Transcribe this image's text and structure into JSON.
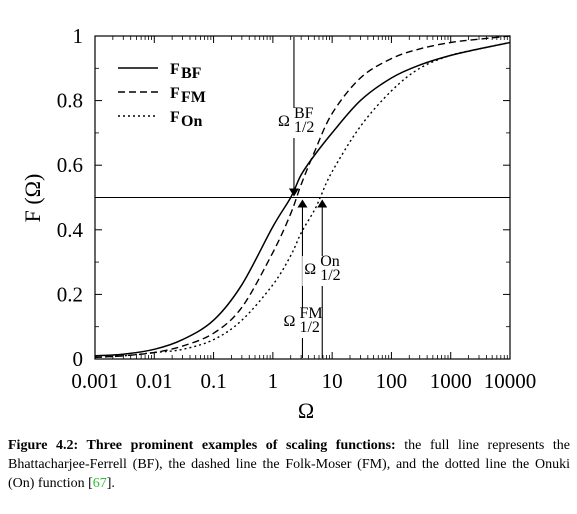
{
  "chart_data": {
    "type": "line",
    "xlabel": "Ω",
    "ylabel": "F (Ω)",
    "xscale": "log",
    "xlim": [
      0.001,
      10000
    ],
    "ylim": [
      0,
      1
    ],
    "x_ticks": [
      "0.001",
      "0.01",
      "0.1",
      "1",
      "10",
      "100",
      "1000",
      "10000"
    ],
    "y_ticks": [
      "0",
      "0.2",
      "0.4",
      "0.6",
      "0.8",
      "1"
    ],
    "reference_line_y": 0.5,
    "legend_placement": "top-left",
    "series": [
      {
        "name": "F_BF",
        "label_main": "F",
        "label_sub": "BF",
        "style": "solid",
        "x": [
          0.001,
          0.003,
          0.01,
          0.03,
          0.1,
          0.3,
          1,
          2,
          3,
          5,
          10,
          30,
          100,
          300,
          1000,
          3000,
          10000
        ],
        "y": [
          0.01,
          0.015,
          0.03,
          0.06,
          0.12,
          0.23,
          0.41,
          0.5,
          0.57,
          0.63,
          0.7,
          0.8,
          0.87,
          0.91,
          0.94,
          0.96,
          0.98
        ]
      },
      {
        "name": "F_FM",
        "label_main": "F",
        "label_sub": "FM",
        "style": "dashed",
        "x": [
          0.001,
          0.003,
          0.01,
          0.03,
          0.1,
          0.3,
          1,
          2,
          3,
          5,
          10,
          30,
          100,
          300,
          1000,
          3000,
          10000
        ],
        "y": [
          0.005,
          0.01,
          0.02,
          0.04,
          0.08,
          0.16,
          0.33,
          0.45,
          0.54,
          0.64,
          0.76,
          0.87,
          0.93,
          0.96,
          0.98,
          0.99,
          1.0
        ]
      },
      {
        "name": "F_On",
        "label_main": "F",
        "label_sub": "On",
        "style": "dotted",
        "x": [
          0.001,
          0.003,
          0.01,
          0.03,
          0.1,
          0.3,
          1,
          2,
          3,
          5,
          6.3,
          10,
          30,
          100,
          300,
          1000,
          3000,
          10000
        ],
        "y": [
          0.005,
          0.01,
          0.02,
          0.03,
          0.06,
          0.12,
          0.23,
          0.32,
          0.39,
          0.46,
          0.5,
          0.58,
          0.72,
          0.83,
          0.9,
          0.94,
          0.96,
          0.98
        ]
      }
    ],
    "annotations": [
      {
        "id": "bf",
        "main": "Ω",
        "sup": "BF",
        "sub": "1/2",
        "x": 2.1,
        "arrow_from": "top"
      },
      {
        "id": "fm",
        "main": "Ω",
        "sup": "FM",
        "sub": "1/2",
        "x": 2.6,
        "arrow_from": "bottom"
      },
      {
        "id": "on",
        "main": "Ω",
        "sup": "On",
        "sub": "1/2",
        "x": 6.3,
        "arrow_from": "bottom"
      }
    ]
  },
  "caption": {
    "label": "Figure 4.2:",
    "bold_text": "Three prominent examples of scaling functions:",
    "text": " the full line represents the Bhattacharjee-Ferrell (BF), the dashed line the Folk-Moser (FM), and the dotted line the Onuki (On) function [",
    "ref": "67",
    "text_end": "]."
  }
}
